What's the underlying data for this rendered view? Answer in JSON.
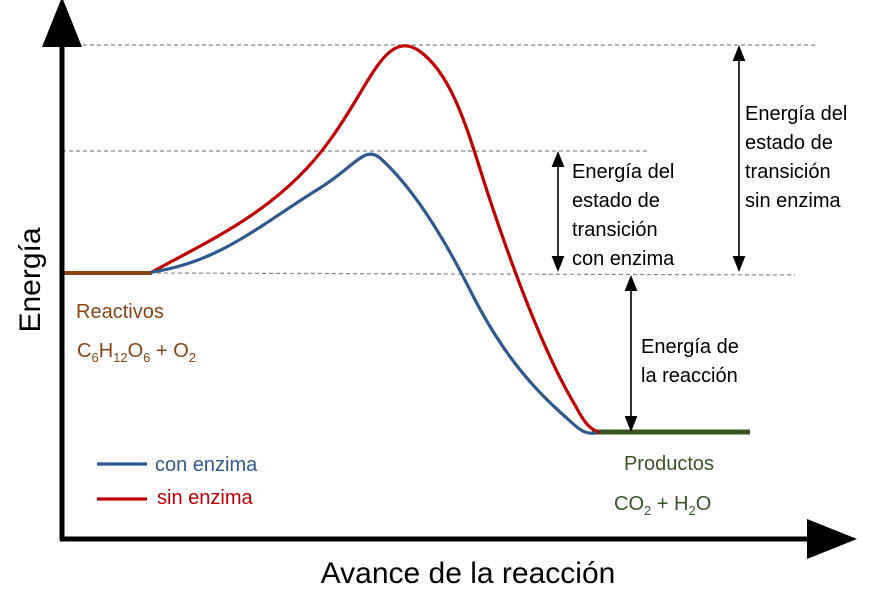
{
  "axes": {
    "ylabel": "Energía",
    "xlabel": "Avance de la reacción"
  },
  "reactants": {
    "label": "Reactivos",
    "formula": {
      "p1": "C",
      "s1": "6",
      "p2": "H",
      "s2": "12",
      "p3": "O",
      "s3": "6",
      "p4": " + O",
      "s4": "2"
    }
  },
  "products": {
    "label": "Productos",
    "formula": {
      "p1": "CO",
      "s1": "2",
      "p2": " + H",
      "s2": "2",
      "p3": "O"
    }
  },
  "annotations": {
    "with_enzyme": [
      "Energía del",
      "estado de",
      "transición",
      "con enzima"
    ],
    "without_enzyme": [
      "Energía del",
      "estado de",
      "transición",
      "sin enzima"
    ],
    "reaction": [
      "Energía de",
      "la reacción"
    ]
  },
  "legend": {
    "with_enzyme": "con enzima",
    "without_enzyme": "sin enzima"
  },
  "colors": {
    "with_enzyme": "#2e5a8e",
    "without_enzyme": "#c00000",
    "reactants": "#8b4513",
    "products": "#375623",
    "axis": "#000000",
    "guide": "#888888"
  }
}
